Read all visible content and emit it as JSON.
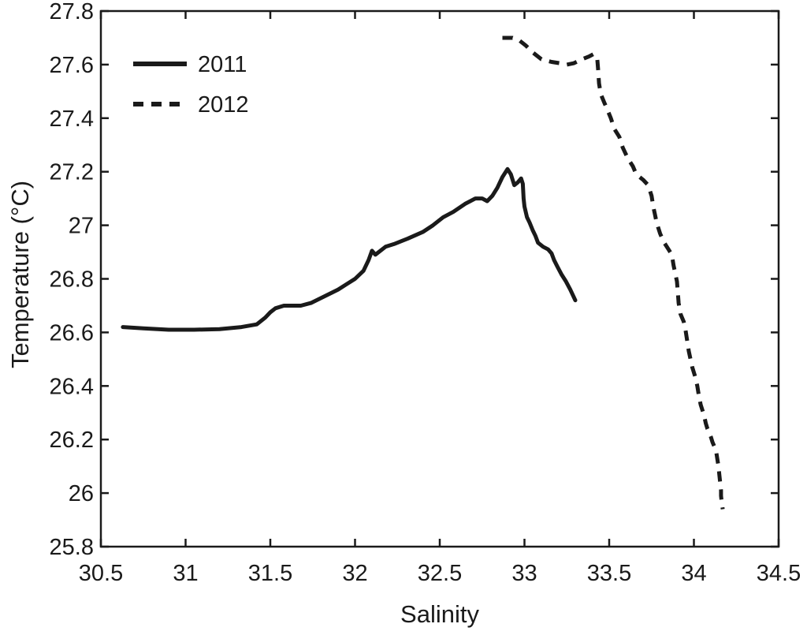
{
  "figure": {
    "background": "#ffffff",
    "line_color": "#1a1a1a",
    "axis_color": "#1a1a1a"
  },
  "chart_data": {
    "type": "line",
    "title": "",
    "xlabel": "Salinity",
    "ylabel": "Temperature (°C)",
    "xlim": [
      30.5,
      34.5
    ],
    "ylim": [
      25.8,
      27.8
    ],
    "grid": false,
    "legend_position": "upper-left-inside",
    "x_ticks": [
      {
        "v": 30.5,
        "label": "30.5"
      },
      {
        "v": 31.0,
        "label": "31"
      },
      {
        "v": 31.5,
        "label": "31.5"
      },
      {
        "v": 32.0,
        "label": "32"
      },
      {
        "v": 32.5,
        "label": "32.5"
      },
      {
        "v": 33.0,
        "label": "33"
      },
      {
        "v": 33.5,
        "label": "33.5"
      },
      {
        "v": 34.0,
        "label": "34"
      },
      {
        "v": 34.5,
        "label": "34.5"
      }
    ],
    "y_ticks": [
      {
        "v": 25.8,
        "label": "25.8"
      },
      {
        "v": 26.0,
        "label": "26"
      },
      {
        "v": 26.2,
        "label": "26.2"
      },
      {
        "v": 26.4,
        "label": "26.4"
      },
      {
        "v": 26.6,
        "label": "26.6"
      },
      {
        "v": 26.8,
        "label": "26.8"
      },
      {
        "v": 27.0,
        "label": "27"
      },
      {
        "v": 27.2,
        "label": "27.2"
      },
      {
        "v": 27.4,
        "label": "27.4"
      },
      {
        "v": 27.6,
        "label": "27.6"
      },
      {
        "v": 27.8,
        "label": "27.8"
      }
    ],
    "series": [
      {
        "name": "2011",
        "style": "solid",
        "points": [
          [
            30.63,
            26.62
          ],
          [
            30.75,
            26.615
          ],
          [
            30.9,
            26.61
          ],
          [
            31.05,
            26.61
          ],
          [
            31.2,
            26.612
          ],
          [
            31.33,
            26.62
          ],
          [
            31.42,
            26.63
          ],
          [
            31.47,
            26.655
          ],
          [
            31.5,
            26.675
          ],
          [
            31.53,
            26.69
          ],
          [
            31.58,
            26.7
          ],
          [
            31.68,
            26.7
          ],
          [
            31.74,
            26.71
          ],
          [
            31.82,
            26.735
          ],
          [
            31.9,
            26.76
          ],
          [
            31.95,
            26.78
          ],
          [
            32.0,
            26.8
          ],
          [
            32.05,
            26.83
          ],
          [
            32.08,
            26.87
          ],
          [
            32.1,
            26.905
          ],
          [
            32.12,
            26.89
          ],
          [
            32.18,
            26.92
          ],
          [
            32.23,
            26.93
          ],
          [
            32.31,
            26.95
          ],
          [
            32.4,
            26.975
          ],
          [
            32.46,
            27.0
          ],
          [
            32.52,
            27.03
          ],
          [
            32.58,
            27.05
          ],
          [
            32.65,
            27.08
          ],
          [
            32.71,
            27.1
          ],
          [
            32.75,
            27.1
          ],
          [
            32.78,
            27.09
          ],
          [
            32.81,
            27.11
          ],
          [
            32.84,
            27.14
          ],
          [
            32.87,
            27.18
          ],
          [
            32.9,
            27.21
          ],
          [
            32.92,
            27.19
          ],
          [
            32.94,
            27.15
          ],
          [
            32.96,
            27.16
          ],
          [
            32.98,
            27.175
          ],
          [
            32.99,
            27.155
          ],
          [
            32.995,
            27.1
          ],
          [
            33.0,
            27.07
          ],
          [
            33.015,
            27.03
          ],
          [
            33.03,
            27.01
          ],
          [
            33.05,
            26.98
          ],
          [
            33.065,
            26.96
          ],
          [
            33.08,
            26.935
          ],
          [
            33.11,
            26.92
          ],
          [
            33.14,
            26.91
          ],
          [
            33.16,
            26.895
          ],
          [
            33.175,
            26.87
          ],
          [
            33.195,
            26.845
          ],
          [
            33.22,
            26.815
          ],
          [
            33.245,
            26.79
          ],
          [
            33.27,
            26.76
          ],
          [
            33.3,
            26.72
          ]
        ]
      },
      {
        "name": "2012",
        "style": "dashed",
        "points": [
          [
            32.87,
            27.7
          ],
          [
            32.93,
            27.7
          ],
          [
            32.97,
            27.69
          ],
          [
            33.01,
            27.67
          ],
          [
            33.05,
            27.645
          ],
          [
            33.1,
            27.62
          ],
          [
            33.16,
            27.61
          ],
          [
            33.21,
            27.605
          ],
          [
            33.25,
            27.6
          ],
          [
            33.29,
            27.605
          ],
          [
            33.34,
            27.62
          ],
          [
            33.38,
            27.63
          ],
          [
            33.41,
            27.64
          ],
          [
            33.43,
            27.62
          ],
          [
            33.435,
            27.58
          ],
          [
            33.44,
            27.53
          ],
          [
            33.45,
            27.49
          ],
          [
            33.47,
            27.46
          ],
          [
            33.49,
            27.43
          ],
          [
            33.51,
            27.4
          ],
          [
            33.53,
            27.36
          ],
          [
            33.56,
            27.33
          ],
          [
            33.58,
            27.29
          ],
          [
            33.61,
            27.25
          ],
          [
            33.64,
            27.22
          ],
          [
            33.66,
            27.19
          ],
          [
            33.7,
            27.17
          ],
          [
            33.73,
            27.15
          ],
          [
            33.75,
            27.11
          ],
          [
            33.76,
            27.07
          ],
          [
            33.77,
            27.04
          ],
          [
            33.78,
            27.01
          ],
          [
            33.8,
            26.97
          ],
          [
            33.82,
            26.94
          ],
          [
            33.85,
            26.91
          ],
          [
            33.87,
            26.89
          ],
          [
            33.88,
            26.85
          ],
          [
            33.89,
            26.82
          ],
          [
            33.9,
            26.79
          ],
          [
            33.905,
            26.75
          ],
          [
            33.91,
            26.71
          ],
          [
            33.92,
            26.67
          ],
          [
            33.94,
            26.64
          ],
          [
            33.95,
            26.61
          ],
          [
            33.96,
            26.57
          ],
          [
            33.97,
            26.53
          ],
          [
            33.98,
            26.5
          ],
          [
            33.99,
            26.47
          ],
          [
            34.01,
            26.43
          ],
          [
            34.02,
            26.4
          ],
          [
            34.03,
            26.36
          ],
          [
            34.04,
            26.33
          ],
          [
            34.06,
            26.29
          ],
          [
            34.07,
            26.26
          ],
          [
            34.08,
            26.24
          ],
          [
            34.1,
            26.21
          ],
          [
            34.11,
            26.19
          ],
          [
            34.13,
            26.16
          ],
          [
            34.14,
            26.12
          ],
          [
            34.145,
            26.1
          ],
          [
            34.15,
            26.07
          ],
          [
            34.155,
            26.04
          ],
          [
            34.16,
            26.01
          ],
          [
            34.16,
            25.99
          ],
          [
            34.165,
            25.96
          ],
          [
            34.17,
            25.94
          ]
        ]
      }
    ]
  }
}
